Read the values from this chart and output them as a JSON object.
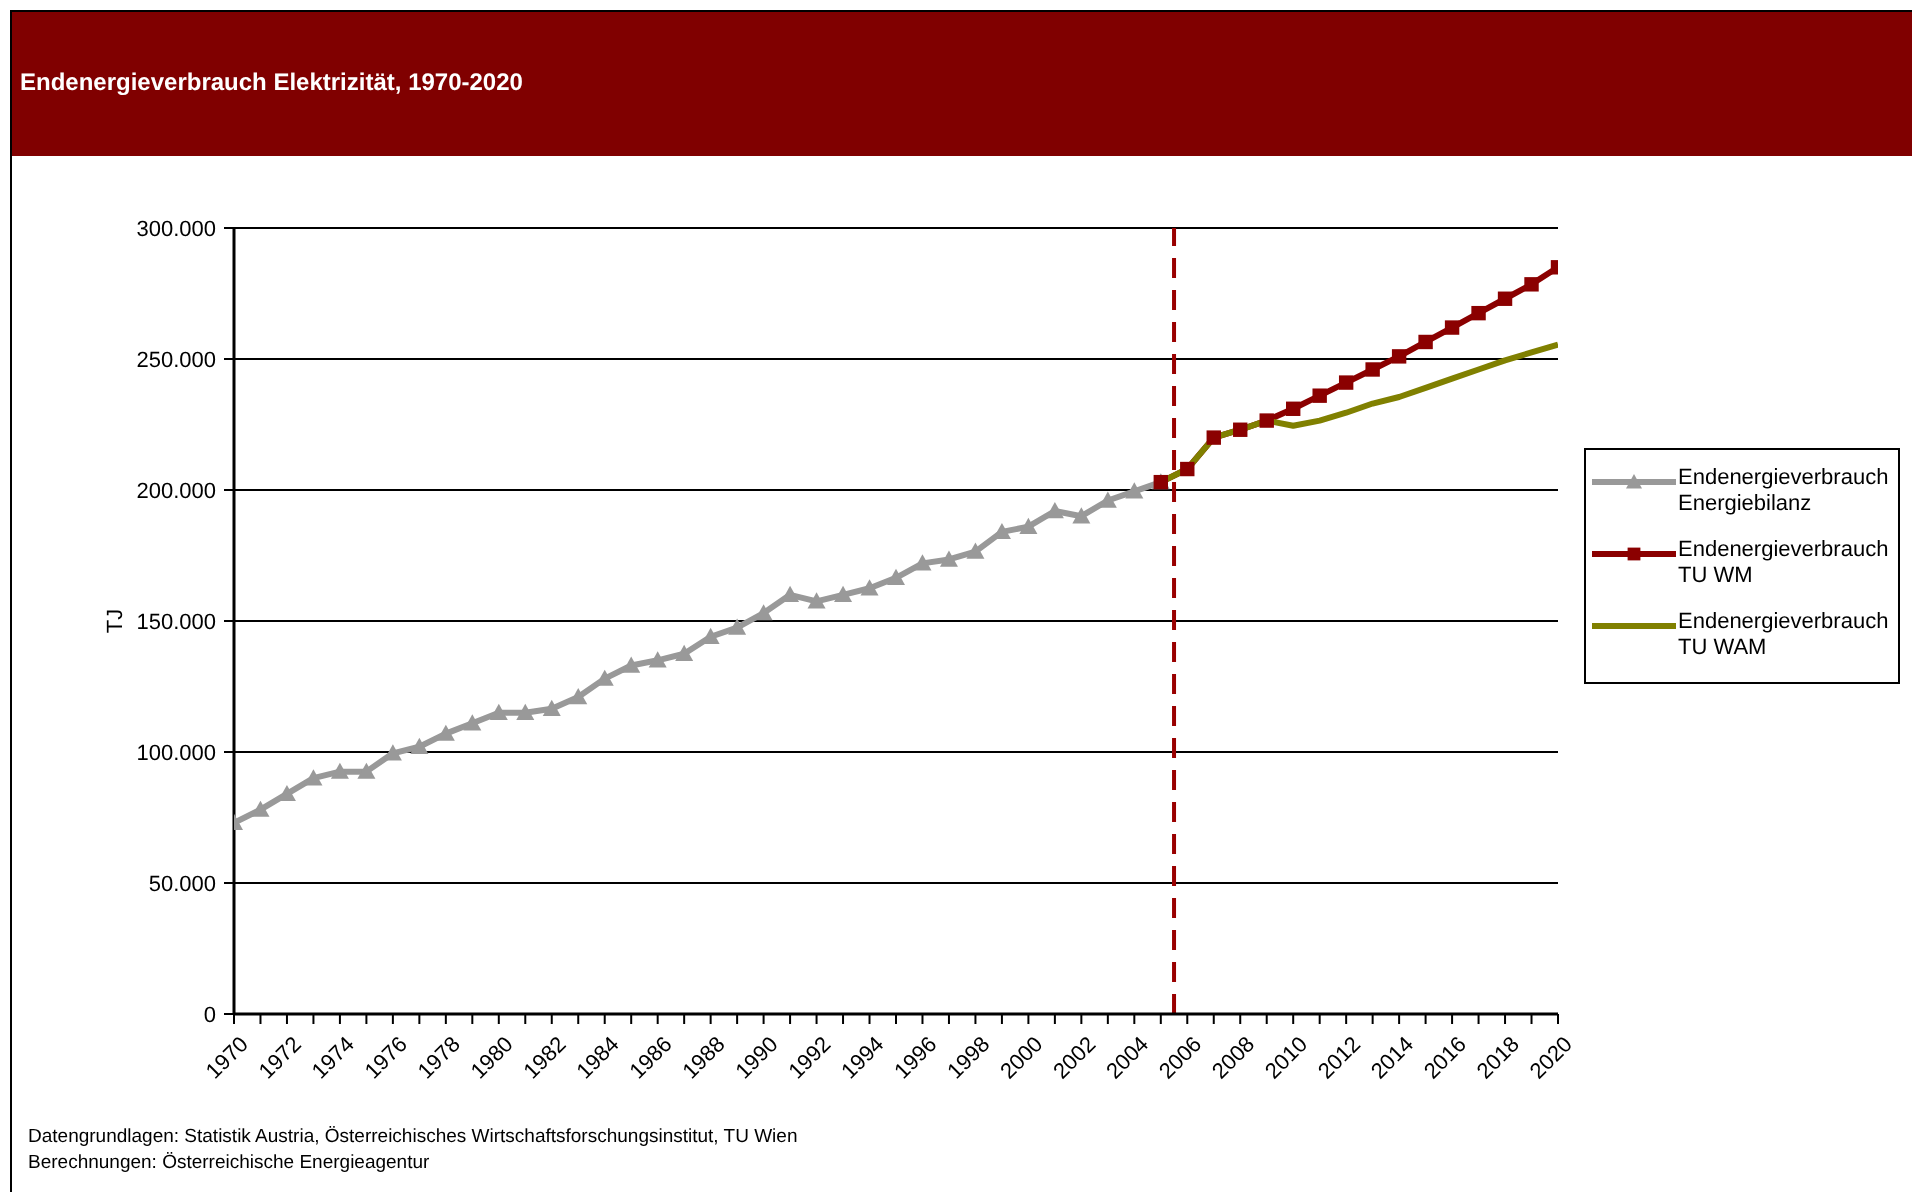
{
  "chart_data": {
    "type": "line",
    "title": "Endenergieverbrauch Elektrizität, 1970-2020",
    "ylabel": "TJ",
    "annotations": [
      "Datengrundlagen: Statistik Austria, Österreichisches Wirtschaftsforschungsinstitut, TU Wien",
      "Berechnungen: Österreichische Energieagentur"
    ],
    "x": [
      1970,
      1971,
      1972,
      1973,
      1974,
      1975,
      1976,
      1977,
      1978,
      1979,
      1980,
      1981,
      1982,
      1983,
      1984,
      1985,
      1986,
      1987,
      1988,
      1989,
      1990,
      1991,
      1992,
      1993,
      1994,
      1995,
      1996,
      1997,
      1998,
      1999,
      2000,
      2001,
      2002,
      2003,
      2004,
      2005,
      2006,
      2007,
      2008,
      2009,
      2010,
      2011,
      2012,
      2013,
      2014,
      2015,
      2016,
      2017,
      2018,
      2019,
      2020
    ],
    "series": [
      {
        "name": "Endenergieverbrauch Energiebilanz",
        "color": "#999999",
        "marker": "triangle",
        "values": [
          73000,
          78000,
          84000,
          90000,
          92500,
          92500,
          99500,
          102000,
          107000,
          111000,
          115000,
          115000,
          116500,
          121000,
          128000,
          133000,
          135000,
          137500,
          144000,
          147500,
          153000,
          160000,
          157500,
          160000,
          162500,
          166500,
          172000,
          173500,
          176500,
          184000,
          186000,
          192000,
          190000,
          196000,
          199500,
          203000,
          null,
          null,
          null,
          null,
          null,
          null,
          null,
          null,
          null,
          null,
          null,
          null,
          null,
          null,
          null
        ]
      },
      {
        "name": "Endenergieverbrauch TU WM",
        "color": "#8b0000",
        "marker": "square",
        "values": [
          null,
          null,
          null,
          null,
          null,
          null,
          null,
          null,
          null,
          null,
          null,
          null,
          null,
          null,
          null,
          null,
          null,
          null,
          null,
          null,
          null,
          null,
          null,
          null,
          null,
          null,
          null,
          null,
          null,
          null,
          null,
          null,
          null,
          null,
          null,
          203000,
          208000,
          220000,
          223000,
          226500,
          231000,
          236000,
          241000,
          246000,
          251000,
          256500,
          262000,
          267500,
          273000,
          278500,
          285000
        ]
      },
      {
        "name": "Endenergieverbrauch TU WAM",
        "color": "#808000",
        "marker": "none",
        "values": [
          null,
          null,
          null,
          null,
          null,
          null,
          null,
          null,
          null,
          null,
          null,
          null,
          null,
          null,
          null,
          null,
          null,
          null,
          null,
          null,
          null,
          null,
          null,
          null,
          null,
          null,
          null,
          null,
          null,
          null,
          null,
          null,
          null,
          null,
          null,
          203000,
          208000,
          220000,
          223000,
          226500,
          224500,
          226500,
          229500,
          233000,
          235500,
          239000,
          242500,
          246000,
          249500,
          252500,
          255500
        ]
      }
    ],
    "xlim": [
      1970,
      2020
    ],
    "xticks": [
      1970,
      {
        "value": 1971,
        "label": null
      },
      1972,
      {
        "value": 1973,
        "label": null
      },
      1974,
      {
        "value": 1975,
        "label": null
      },
      1976,
      {
        "value": 1977,
        "label": null
      },
      1978,
      {
        "value": 1979,
        "label": null
      },
      1980,
      {
        "value": 1981,
        "label": null
      },
      1982,
      {
        "value": 1983,
        "label": null
      },
      1984,
      {
        "value": 1985,
        "label": null
      },
      1986,
      {
        "value": 1987,
        "label": null
      },
      1988,
      {
        "value": 1989,
        "label": null
      },
      1990,
      {
        "value": 1991,
        "label": null
      },
      1992,
      {
        "value": 1993,
        "label": null
      },
      1994,
      {
        "value": 1995,
        "label": null
      },
      1996,
      {
        "value": 1997,
        "label": null
      },
      1998,
      {
        "value": 1999,
        "label": null
      },
      2000,
      {
        "value": 2001,
        "label": null
      },
      2002,
      {
        "value": 2003,
        "label": null
      },
      2004,
      {
        "value": 2005,
        "label": null
      },
      2006,
      {
        "value": 2007,
        "label": null
      },
      2008,
      {
        "value": 2009,
        "label": null
      },
      2010,
      {
        "value": 2011,
        "label": null
      },
      2012,
      {
        "value": 2013,
        "label": null
      },
      2014,
      {
        "value": 2015,
        "label": null
      },
      2016,
      {
        "value": 2017,
        "label": null
      },
      2018,
      {
        "value": 2019,
        "label": null
      },
      2020
    ],
    "ylim": [
      0,
      300000
    ],
    "yticks": [
      0,
      {
        "value": 50000,
        "label": "50.000"
      },
      {
        "value": 100000,
        "label": "100.000"
      },
      {
        "value": 150000,
        "label": "150.000"
      },
      {
        "value": 200000,
        "label": "200.000"
      },
      {
        "value": 250000,
        "label": "250.000"
      },
      {
        "value": 300000,
        "label": "300.000"
      }
    ],
    "ref_lines": [
      {
        "axis": "x",
        "value": 2005.5,
        "color": "#990000",
        "line_style": "dashed"
      }
    ],
    "grid": "y",
    "legend": "right"
  }
}
